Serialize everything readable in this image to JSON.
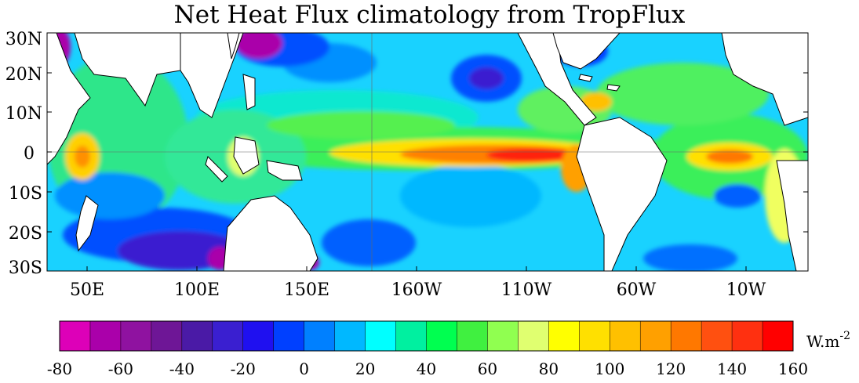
{
  "title": "Net Heat Flux climatology from TropFlux",
  "map": {
    "lat_labels": [
      "30N",
      "20N",
      "10N",
      "0",
      "10S",
      "20S",
      "30S"
    ],
    "lon_labels": [
      "50E",
      "100E",
      "150E",
      "160W",
      "110W",
      "60W",
      "10W"
    ],
    "land_color": "#ffffff"
  },
  "colorbar": {
    "unit_base": "W.m",
    "unit_exp": "-2",
    "tick_labels": [
      "-80",
      "-60",
      "-40",
      "-20",
      "0",
      "20",
      "40",
      "60",
      "80",
      "100",
      "120",
      "140",
      "160"
    ],
    "colors": [
      "#dd00b8",
      "#aa00aa",
      "#8f12a0",
      "#6e1696",
      "#4a1aa6",
      "#3a1fd0",
      "#1f10f0",
      "#0040ff",
      "#0080ff",
      "#00b8ff",
      "#00ffff",
      "#00f0a0",
      "#00ff50",
      "#40f040",
      "#90ff50",
      "#e0ff70",
      "#ffff00",
      "#ffe000",
      "#ffc000",
      "#ffa000",
      "#ff7800",
      "#ff5010",
      "#ff3010",
      "#ff0000"
    ]
  }
}
